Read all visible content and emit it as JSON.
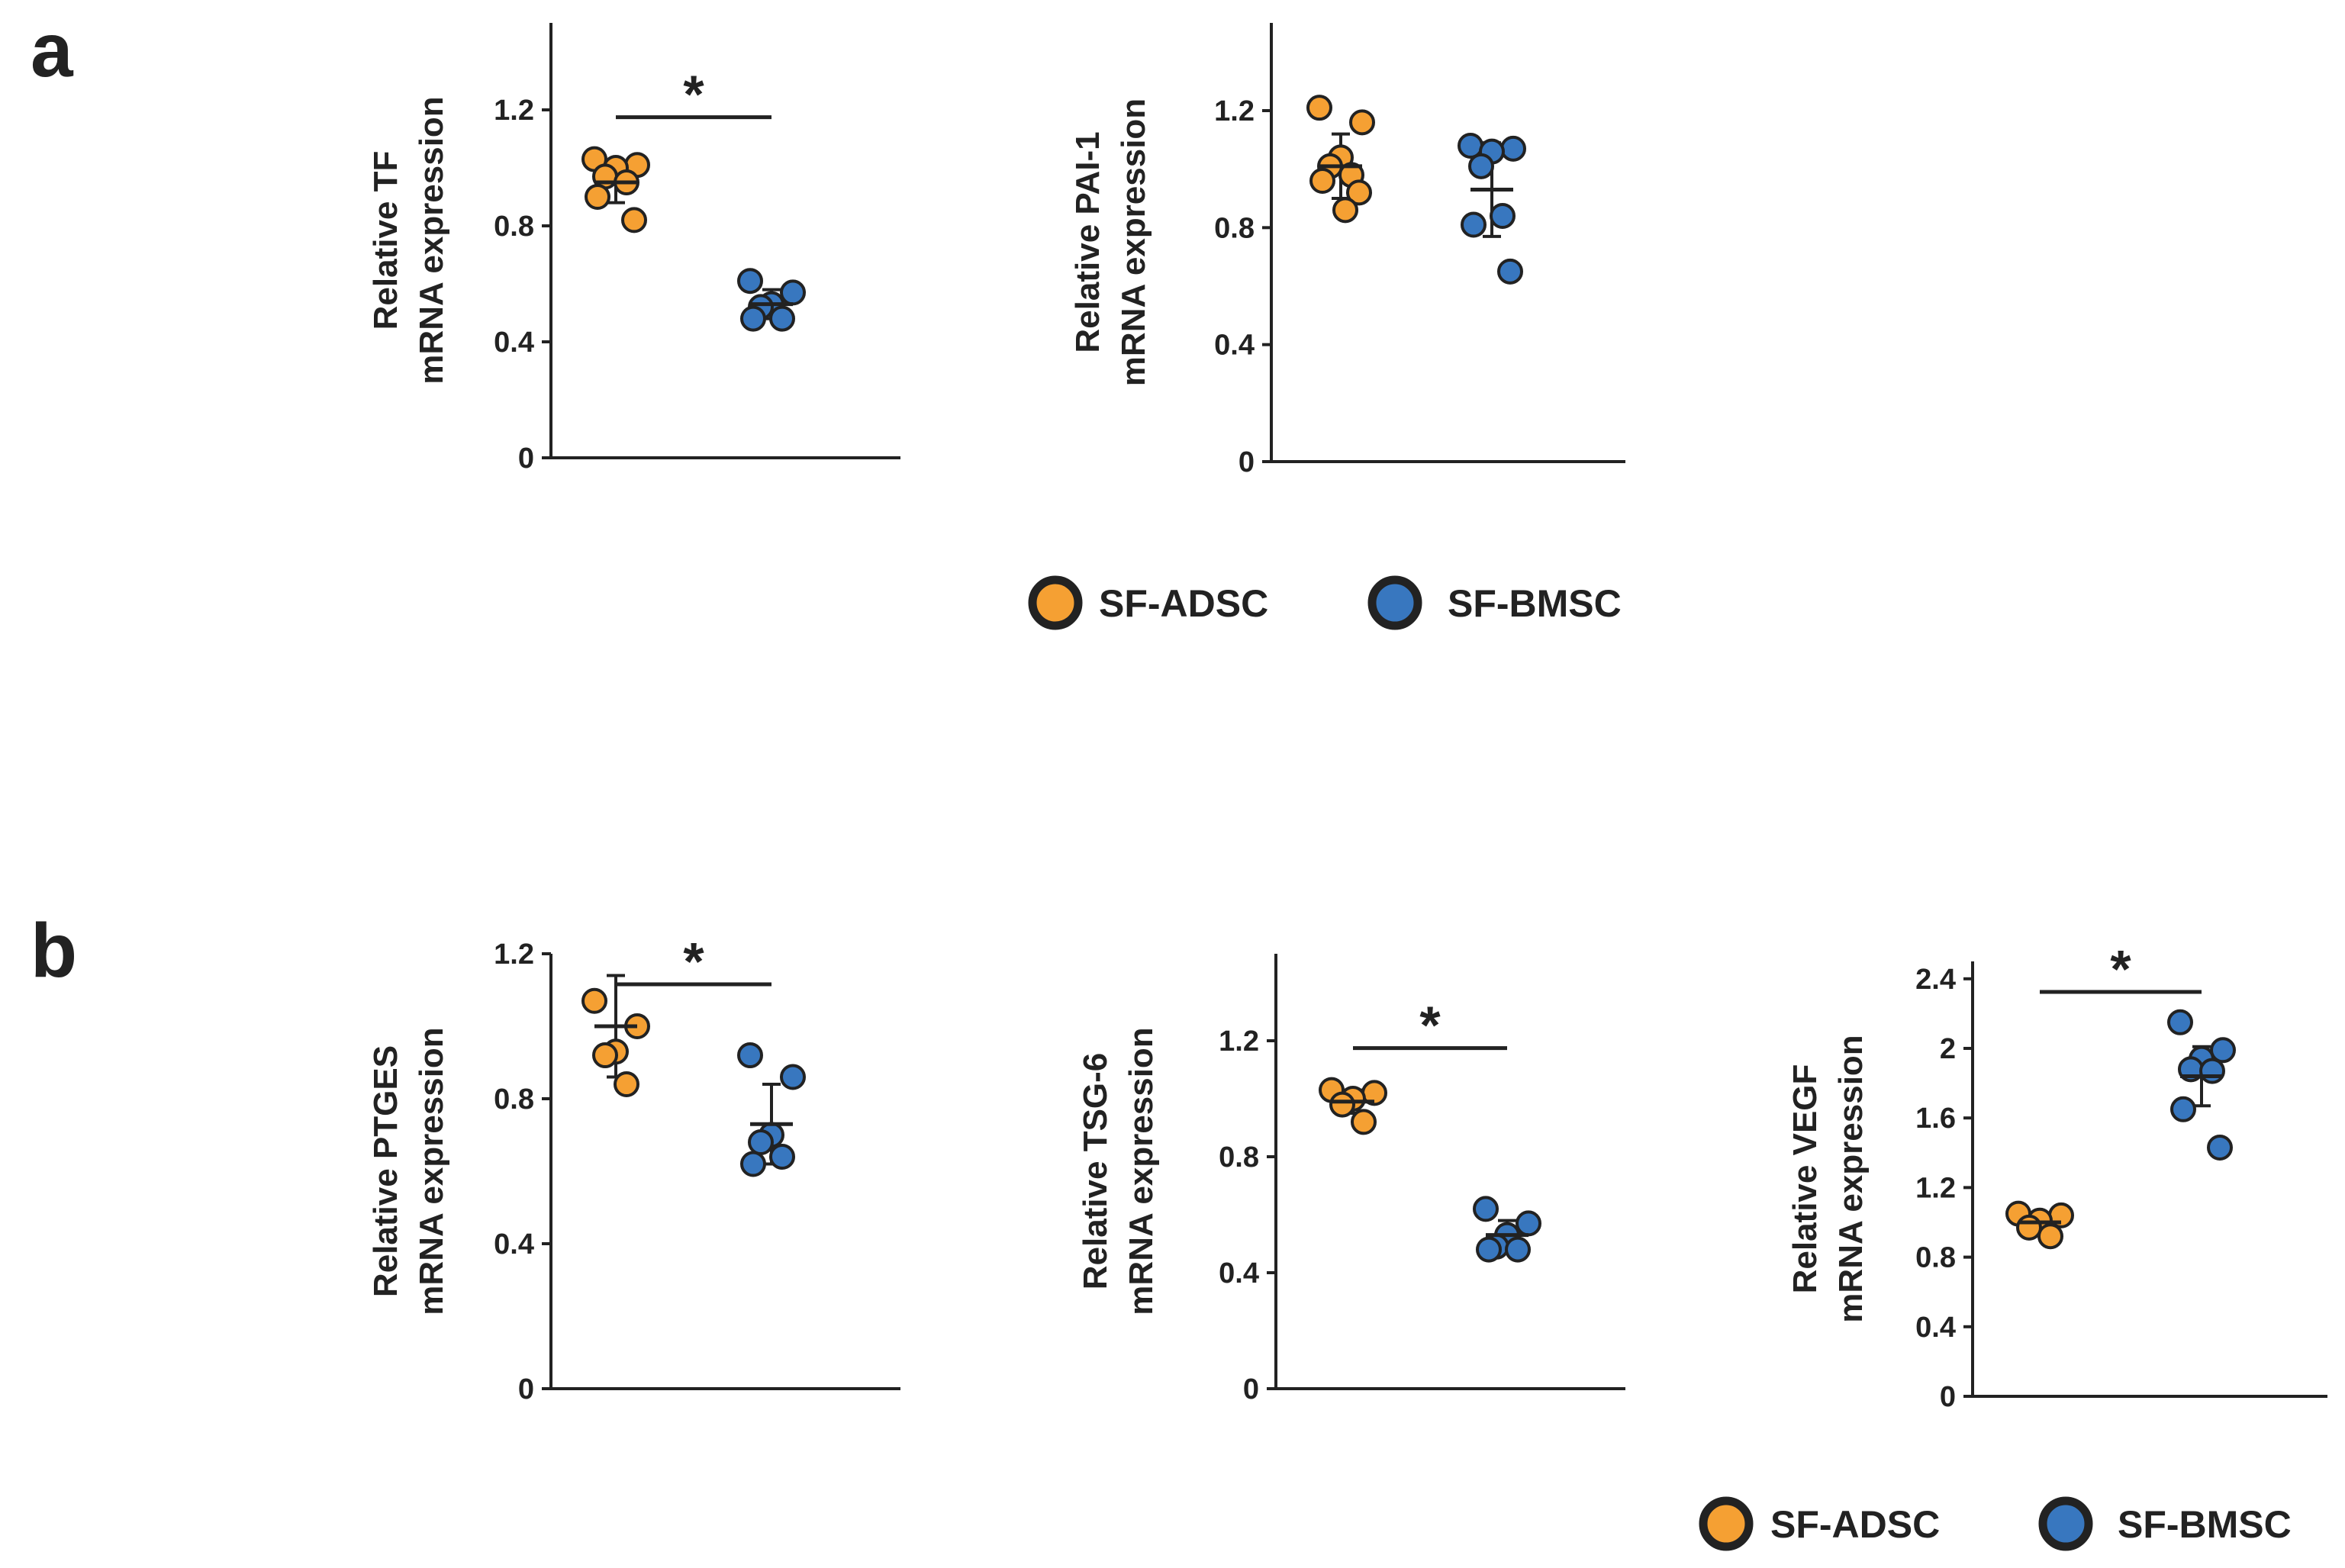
{
  "panels": {
    "a": "a",
    "b": "b"
  },
  "colors": {
    "adsc": "#F5A033",
    "bmsc": "#3877BF",
    "stroke": "#222222",
    "axis": "#222222"
  },
  "legend": {
    "adsc": "SF-ADSC",
    "bmsc": "SF-BMSC"
  },
  "chart_data": [
    {
      "type": "scatter",
      "panel": "a",
      "ylabel_line1": "Relative  TF",
      "ylabel_line2": "mRNA expression",
      "ylim": [
        0,
        1.5
      ],
      "yticks": [
        0,
        0.4,
        0.8,
        1.2
      ],
      "ytick_labels": [
        "0",
        "0.4",
        "0.8",
        "1.2"
      ],
      "significance": "*",
      "groups": [
        {
          "name": "SF-ADSC",
          "mean": 0.95,
          "sd": 0.07,
          "points": [
            1.03,
            1.01,
            1.0,
            0.97,
            0.95,
            0.9,
            0.82
          ]
        },
        {
          "name": "SF-BMSC",
          "mean": 0.53,
          "sd": 0.05,
          "points": [
            0.61,
            0.57,
            0.53,
            0.52,
            0.48,
            0.48
          ]
        }
      ]
    },
    {
      "type": "scatter",
      "panel": "a",
      "ylabel_line1": "Relative  PAI-1",
      "ylabel_line2": "mRNA expression",
      "ylim": [
        0,
        1.5
      ],
      "yticks": [
        0,
        0.4,
        0.8,
        1.2
      ],
      "ytick_labels": [
        "0",
        "0.4",
        "0.8",
        "1.2"
      ],
      "significance": "",
      "groups": [
        {
          "name": "SF-ADSC",
          "mean": 1.01,
          "sd": 0.11,
          "points": [
            1.21,
            1.16,
            1.04,
            1.01,
            0.98,
            0.96,
            0.92,
            0.86
          ]
        },
        {
          "name": "SF-BMSC",
          "mean": 0.93,
          "sd": 0.16,
          "points": [
            1.08,
            1.07,
            1.06,
            1.01,
            0.84,
            0.81,
            0.65
          ]
        }
      ]
    },
    {
      "type": "scatter",
      "panel": "b",
      "ylabel_line1": "Relative PTGES",
      "ylabel_line2": "mRNA expression",
      "ylim": [
        0,
        1.2
      ],
      "yticks": [
        0,
        0.4,
        0.8,
        1.2
      ],
      "ytick_labels": [
        "0",
        "0.4",
        "0.8",
        "1.2"
      ],
      "significance": "*",
      "groups": [
        {
          "name": "SF-ADSC",
          "mean": 1.0,
          "sd": 0.14,
          "points": [
            1.07,
            1.0,
            0.93,
            0.92,
            0.84
          ]
        },
        {
          "name": "SF-BMSC",
          "mean": 0.73,
          "sd": 0.11,
          "points": [
            0.92,
            0.86,
            0.7,
            0.68,
            0.64,
            0.62
          ]
        }
      ]
    },
    {
      "type": "scatter",
      "panel": "b",
      "ylabel_line1": "Relative  TSG-6",
      "ylabel_line2": "mRNA expression",
      "ylim": [
        0,
        1.5
      ],
      "yticks": [
        0,
        0.4,
        0.8,
        1.2
      ],
      "ytick_labels": [
        "0",
        "0.4",
        "0.8",
        "1.2"
      ],
      "significance": "*",
      "groups": [
        {
          "name": "SF-ADSC",
          "mean": 0.99,
          "sd": 0.04,
          "points": [
            1.03,
            1.02,
            1.0,
            0.98,
            0.92
          ]
        },
        {
          "name": "SF-BMSC",
          "mean": 0.53,
          "sd": 0.05,
          "points": [
            0.62,
            0.57,
            0.53,
            0.49,
            0.48,
            0.48
          ]
        }
      ]
    },
    {
      "type": "scatter",
      "panel": "b",
      "ylabel_line1": "Relative VEGF",
      "ylabel_line2": "mRNA expression",
      "ylim": [
        0,
        2.5
      ],
      "yticks": [
        0,
        0.4,
        0.8,
        1.2,
        1.6,
        2,
        2.4
      ],
      "ytick_labels": [
        "0",
        "0.4",
        "0.8",
        "1.2",
        "1.6",
        "2",
        "2.4"
      ],
      "significance": "*",
      "groups": [
        {
          "name": "SF-ADSC",
          "mean": 1.0,
          "sd": 0.05,
          "points": [
            1.05,
            1.04,
            1.01,
            0.97,
            0.92
          ]
        },
        {
          "name": "SF-BMSC",
          "mean": 1.84,
          "sd": 0.17,
          "points": [
            2.15,
            1.99,
            1.94,
            1.88,
            1.87,
            1.65,
            1.43
          ]
        }
      ]
    }
  ]
}
